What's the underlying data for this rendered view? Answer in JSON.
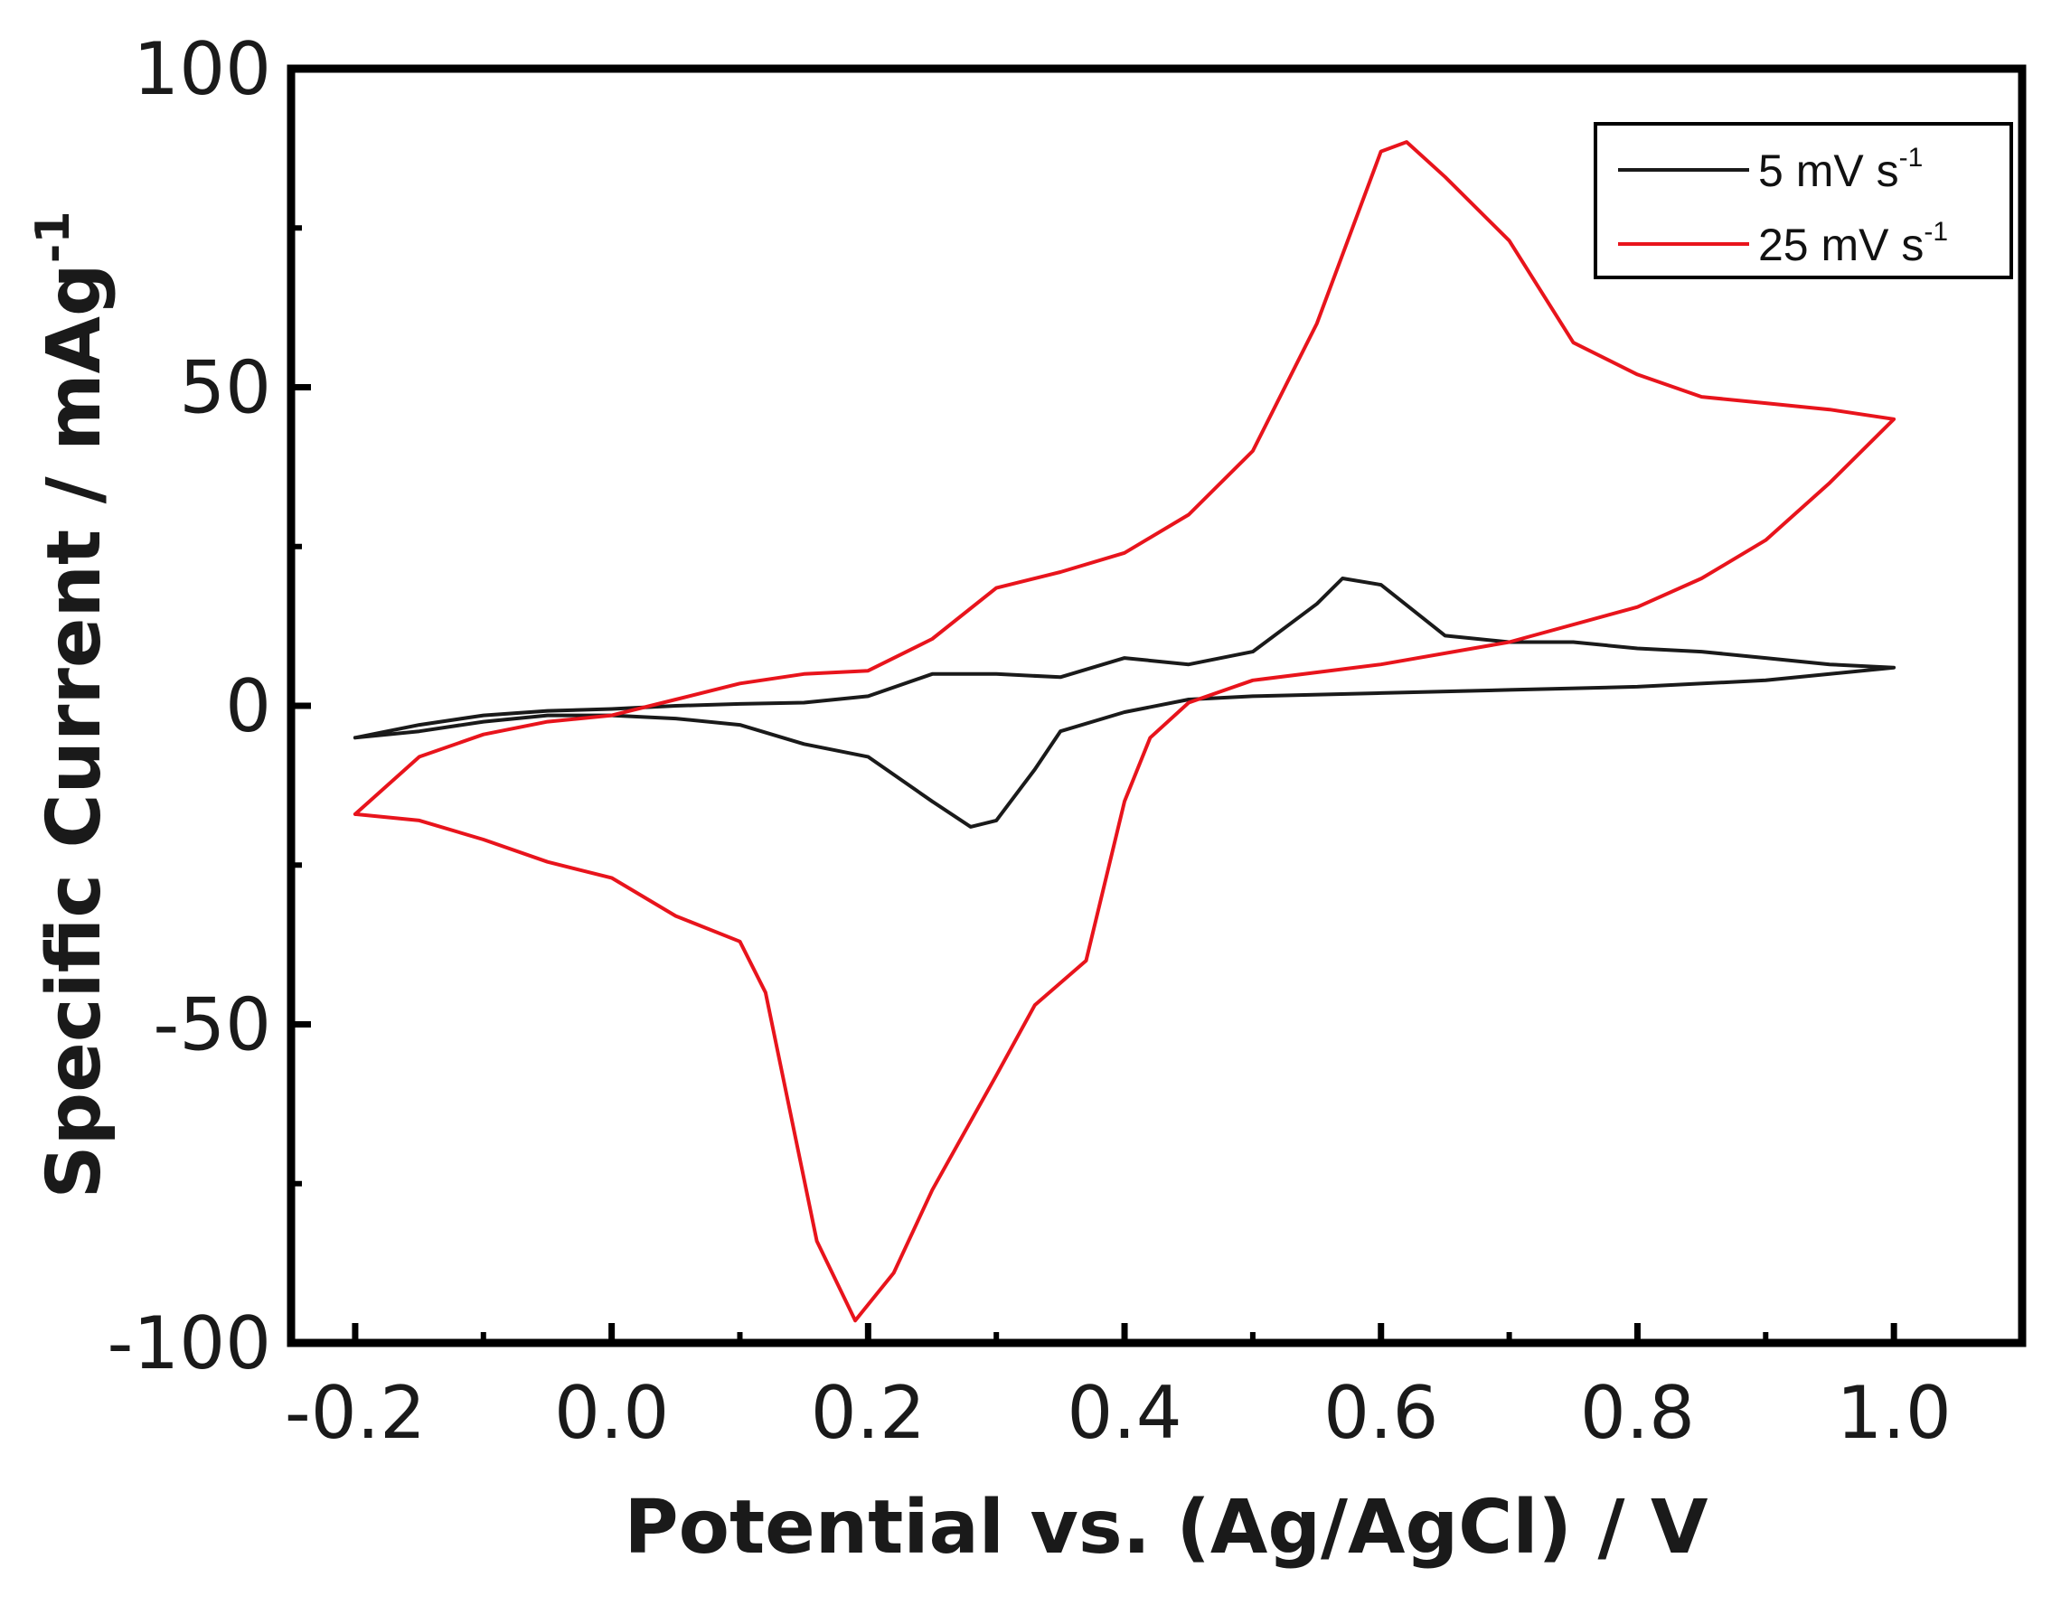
{
  "chart_data": {
    "type": "line",
    "title": "",
    "xlabel": "Potential vs. (Ag/AgCl) / V",
    "ylabel_main": "Specific Current / mAg",
    "ylabel_sup": "-1",
    "xlim": [
      -0.25,
      1.1
    ],
    "ylim": [
      -100,
      100
    ],
    "xticks": [
      -0.2,
      0.0,
      0.2,
      0.4,
      0.6,
      0.8,
      1.0
    ],
    "xtick_labels": [
      "-0.2",
      "0.0",
      "0.2",
      "0.4",
      "0.6",
      "0.8",
      "1.0"
    ],
    "yticks": [
      -100,
      -50,
      0,
      50,
      100
    ],
    "ytick_labels": [
      "-100",
      "-50",
      "0",
      "50",
      "100"
    ],
    "grid": false,
    "legend_position": "top-right",
    "series": [
      {
        "name_main": "5 mV s",
        "name_sup": "-1",
        "color": "#1a1a1a",
        "x": [
          -0.2,
          -0.15,
          -0.1,
          -0.05,
          0.0,
          0.05,
          0.1,
          0.15,
          0.2,
          0.25,
          0.3,
          0.35,
          0.4,
          0.45,
          0.5,
          0.55,
          0.57,
          0.6,
          0.65,
          0.7,
          0.75,
          0.8,
          0.85,
          0.9,
          0.95,
          1.0,
          0.95,
          0.9,
          0.8,
          0.7,
          0.6,
          0.5,
          0.45,
          0.4,
          0.35,
          0.33,
          0.3,
          0.28,
          0.25,
          0.2,
          0.15,
          0.1,
          0.05,
          0.0,
          -0.05,
          -0.1,
          -0.15,
          -0.2
        ],
        "y": [
          -5,
          -3,
          -1.5,
          -0.8,
          -0.5,
          0,
          0.3,
          0.5,
          1.5,
          5,
          5,
          4.5,
          7.5,
          6.5,
          8.5,
          16,
          20,
          19,
          11,
          10,
          10,
          9,
          8.5,
          7.5,
          6.5,
          6,
          5,
          4,
          3,
          2.5,
          2,
          1.5,
          1,
          -1,
          -4,
          -10,
          -18,
          -19,
          -15,
          -8,
          -6,
          -3,
          -2,
          -1.5,
          -1.5,
          -2.5,
          -4,
          -5
        ]
      },
      {
        "name_main": "25 mV s",
        "name_sup": "-1",
        "color": "#e8141c",
        "x": [
          -0.2,
          -0.15,
          -0.1,
          -0.05,
          0.0,
          0.05,
          0.1,
          0.15,
          0.2,
          0.25,
          0.3,
          0.35,
          0.4,
          0.45,
          0.5,
          0.55,
          0.6,
          0.62,
          0.65,
          0.7,
          0.75,
          0.8,
          0.85,
          0.9,
          0.95,
          1.0,
          0.95,
          0.9,
          0.85,
          0.8,
          0.7,
          0.6,
          0.5,
          0.45,
          0.42,
          0.4,
          0.37,
          0.33,
          0.3,
          0.25,
          0.22,
          0.19,
          0.16,
          0.12,
          0.1,
          0.05,
          0.0,
          -0.05,
          -0.1,
          -0.15,
          -0.2
        ],
        "y": [
          -17,
          -8,
          -4.5,
          -2.5,
          -1.5,
          1,
          3.5,
          5,
          5.5,
          10.5,
          18.5,
          21,
          24,
          30,
          40,
          60,
          87,
          88.5,
          83,
          73,
          57,
          52,
          48.5,
          47.5,
          46.5,
          45,
          35,
          26,
          20,
          15.5,
          10,
          6.5,
          4,
          0.5,
          -5,
          -15,
          -40,
          -47,
          -58,
          -76,
          -89,
          -96.5,
          -84,
          -45,
          -37,
          -33,
          -27,
          -24.5,
          -21,
          -18,
          -17
        ]
      }
    ]
  }
}
